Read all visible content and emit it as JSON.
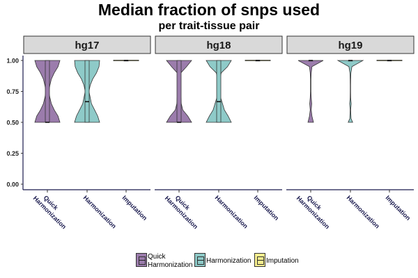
{
  "chart_data": {
    "type": "violin",
    "title": "Median fraction of snps used",
    "subtitle": "per trait-tissue pair",
    "xlabel": "",
    "ylabel": "",
    "ylim": [
      0,
      1
    ],
    "y_ticks": [
      "0.00",
      "0.25",
      "0.50",
      "0.75",
      "1.00"
    ],
    "grid": false,
    "legend_position": "bottom",
    "categories": [
      "Quick Harmonization",
      "Harmonization",
      "Imputation"
    ],
    "category_tick_labels": [
      [
        "Quick",
        "Harmonization"
      ],
      [
        "Harmonization"
      ],
      [
        "Imputation"
      ]
    ],
    "legend_labels": [
      [
        "Quick",
        "Harmonization"
      ],
      [
        "Harmonization"
      ],
      [
        "Imputation"
      ]
    ],
    "colors": {
      "Quick Harmonization": "#9b7cac",
      "Harmonization": "#8ecac8",
      "Imputation": "#f7ef8f"
    },
    "panels": [
      {
        "name": "hg17",
        "violins": [
          {
            "category": "Quick Harmonization",
            "min": 0.5,
            "max": 1.0,
            "median": 0.5,
            "q1": 0.5,
            "q3": 1.0,
            "profile": [
              [
                0.5,
                1.0
              ],
              [
                0.55,
                0.85
              ],
              [
                0.6,
                0.55
              ],
              [
                0.65,
                0.32
              ],
              [
                0.7,
                0.2
              ],
              [
                0.75,
                0.12
              ],
              [
                0.8,
                0.2
              ],
              [
                0.85,
                0.32
              ],
              [
                0.9,
                0.55
              ],
              [
                0.95,
                0.85
              ],
              [
                1.0,
                1.0
              ]
            ]
          },
          {
            "category": "Harmonization",
            "min": 0.5,
            "max": 1.0,
            "median": 0.667,
            "q1": 0.5,
            "q3": 1.0,
            "profile": [
              [
                0.5,
                1.0
              ],
              [
                0.55,
                0.85
              ],
              [
                0.6,
                0.6
              ],
              [
                0.65,
                0.35
              ],
              [
                0.7,
                0.25
              ],
              [
                0.75,
                0.15
              ],
              [
                0.8,
                0.25
              ],
              [
                0.85,
                0.45
              ],
              [
                0.9,
                0.75
              ],
              [
                0.95,
                0.95
              ],
              [
                1.0,
                1.0
              ]
            ]
          },
          {
            "category": "Imputation",
            "min": 1.0,
            "max": 1.0,
            "median": 1.0,
            "q1": 1.0,
            "q3": 1.0,
            "profile": [
              [
                0.997,
                1.0
              ],
              [
                1.003,
                1.0
              ]
            ]
          }
        ]
      },
      {
        "name": "hg18",
        "violins": [
          {
            "category": "Quick Harmonization",
            "min": 0.5,
            "max": 1.0,
            "median": 0.5,
            "q1": 0.5,
            "q3": 1.0,
            "profile": [
              [
                0.5,
                1.0
              ],
              [
                0.55,
                0.7
              ],
              [
                0.6,
                0.3
              ],
              [
                0.65,
                0.18
              ],
              [
                0.7,
                0.15
              ],
              [
                0.75,
                0.08
              ],
              [
                0.8,
                0.06
              ],
              [
                0.85,
                0.08
              ],
              [
                0.9,
                0.15
              ],
              [
                0.95,
                0.6
              ],
              [
                1.0,
                1.0
              ]
            ]
          },
          {
            "category": "Harmonization",
            "min": 0.5,
            "max": 1.0,
            "median": 0.667,
            "q1": 0.5,
            "q3": 1.0,
            "profile": [
              [
                0.5,
                1.0
              ],
              [
                0.55,
                0.75
              ],
              [
                0.6,
                0.45
              ],
              [
                0.65,
                0.3
              ],
              [
                0.7,
                0.15
              ],
              [
                0.75,
                0.08
              ],
              [
                0.8,
                0.08
              ],
              [
                0.85,
                0.1
              ],
              [
                0.9,
                0.2
              ],
              [
                0.95,
                0.7
              ],
              [
                1.0,
                1.0
              ]
            ]
          },
          {
            "category": "Imputation",
            "min": 1.0,
            "max": 1.0,
            "median": 1.0,
            "q1": 1.0,
            "q3": 1.0,
            "profile": [
              [
                0.997,
                1.0
              ],
              [
                1.003,
                1.0
              ]
            ]
          }
        ]
      },
      {
        "name": "hg19",
        "violins": [
          {
            "category": "Quick Harmonization",
            "min": 0.5,
            "max": 1.0,
            "median": 1.0,
            "q1": 1.0,
            "q3": 1.0,
            "profile": [
              [
                0.5,
                0.22
              ],
              [
                0.55,
                0.1
              ],
              [
                0.6,
                0.04
              ],
              [
                0.65,
                0.08
              ],
              [
                0.7,
                0.04
              ],
              [
                0.75,
                0.02
              ],
              [
                0.8,
                0.02
              ],
              [
                0.85,
                0.02
              ],
              [
                0.9,
                0.04
              ],
              [
                0.95,
                0.1
              ],
              [
                1.0,
                1.0
              ]
            ]
          },
          {
            "category": "Harmonization",
            "min": 0.5,
            "max": 1.0,
            "median": 1.0,
            "q1": 1.0,
            "q3": 1.0,
            "profile": [
              [
                0.5,
                0.18
              ],
              [
                0.53,
                0.05
              ],
              [
                0.6,
                0.02
              ],
              [
                0.65,
                0.06
              ],
              [
                0.7,
                0.02
              ],
              [
                0.75,
                0.015
              ],
              [
                0.8,
                0.015
              ],
              [
                0.85,
                0.02
              ],
              [
                0.9,
                0.04
              ],
              [
                0.95,
                0.12
              ],
              [
                1.0,
                1.0
              ]
            ]
          },
          {
            "category": "Imputation",
            "min": 1.0,
            "max": 1.0,
            "median": 1.0,
            "q1": 1.0,
            "q3": 1.0,
            "profile": [
              [
                0.997,
                1.0
              ],
              [
                1.003,
                1.0
              ]
            ]
          }
        ]
      }
    ]
  }
}
